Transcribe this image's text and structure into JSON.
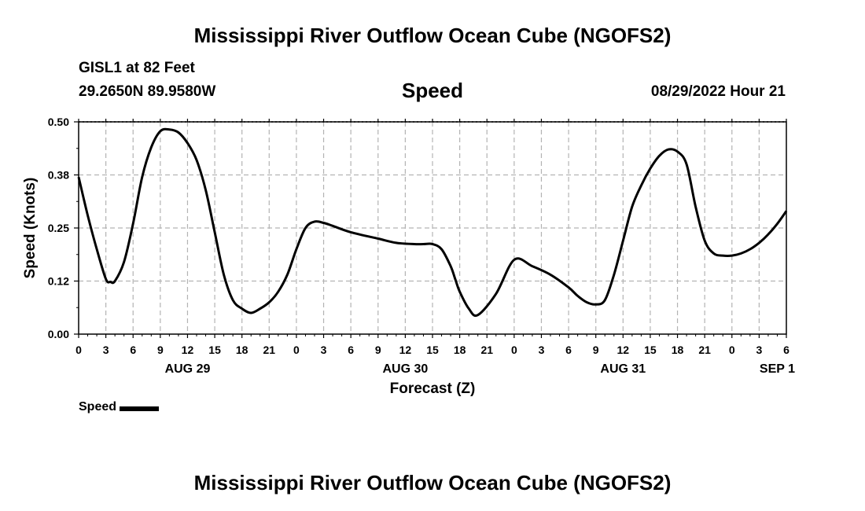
{
  "header": {
    "title": "Mississippi River Outflow Ocean Cube (NGOFS2)",
    "station": "GISL1 at 82 Feet",
    "coordinates": "29.2650N  89.9580W",
    "variable": "Speed",
    "datetime": "08/29/2022 Hour 21"
  },
  "footer": {
    "title": "Mississippi River Outflow Ocean Cube (NGOFS2)"
  },
  "legend": {
    "label": "Speed"
  },
  "chart_data": {
    "type": "line",
    "title": "Speed",
    "xlabel": "Forecast (Z)",
    "ylabel": "Speed (Knots)",
    "ylim": [
      0,
      0.5
    ],
    "xlim": [
      0,
      78
    ],
    "x_unit": "hours from 08/29/2022 00Z",
    "y_ticks": [
      "0.00",
      "0.12",
      "0.25",
      "0.38",
      "0.50"
    ],
    "y_tick_values": [
      0,
      0.125,
      0.25,
      0.375,
      0.5
    ],
    "x_ticks": [
      0,
      3,
      6,
      9,
      12,
      15,
      18,
      21,
      24,
      27,
      30,
      33,
      36,
      39,
      42,
      45,
      48,
      51,
      54,
      57,
      60,
      63,
      66,
      69,
      72,
      75,
      78
    ],
    "x_tick_labels": [
      "0",
      "3",
      "6",
      "9",
      "12",
      "15",
      "18",
      "21",
      "0",
      "3",
      "6",
      "9",
      "12",
      "15",
      "18",
      "21",
      "0",
      "3",
      "6",
      "9",
      "12",
      "15",
      "18",
      "21",
      "0",
      "3",
      "6"
    ],
    "date_labels": [
      {
        "label": "AUG 29",
        "hour": 12
      },
      {
        "label": "AUG 30",
        "hour": 36
      },
      {
        "label": "AUG 31",
        "hour": 60
      },
      {
        "label": "SEP 1",
        "hour": 77
      }
    ],
    "grid": true,
    "series": [
      {
        "name": "Speed",
        "color": "#000000",
        "x": [
          0,
          1,
          2,
          3,
          3.5,
          4,
          5,
          6,
          7,
          8,
          9,
          10,
          11,
          12,
          13,
          14,
          15,
          16,
          17,
          18,
          19,
          20,
          21,
          22,
          23,
          24,
          25,
          26,
          27,
          28,
          30,
          33,
          35,
          37,
          38,
          39,
          40,
          41,
          41.5,
          42,
          43,
          44,
          46,
          48,
          50,
          52,
          54,
          55,
          56,
          57,
          58,
          59,
          60,
          61,
          62,
          63,
          64,
          65,
          66,
          67,
          68,
          69,
          70,
          71,
          72,
          73,
          74,
          75,
          76,
          77,
          78
        ],
        "y": [
          0.37,
          0.28,
          0.2,
          0.13,
          0.123,
          0.125,
          0.17,
          0.26,
          0.37,
          0.44,
          0.478,
          0.482,
          0.475,
          0.45,
          0.41,
          0.34,
          0.24,
          0.14,
          0.08,
          0.06,
          0.05,
          0.06,
          0.075,
          0.1,
          0.14,
          0.2,
          0.25,
          0.265,
          0.262,
          0.255,
          0.24,
          0.225,
          0.215,
          0.212,
          0.212,
          0.212,
          0.2,
          0.16,
          0.13,
          0.1,
          0.06,
          0.045,
          0.095,
          0.175,
          0.16,
          0.14,
          0.11,
          0.09,
          0.075,
          0.07,
          0.08,
          0.14,
          0.22,
          0.3,
          0.35,
          0.39,
          0.42,
          0.435,
          0.43,
          0.4,
          0.3,
          0.22,
          0.19,
          0.185,
          0.185,
          0.19,
          0.2,
          0.215,
          0.235,
          0.26,
          0.29
        ]
      }
    ]
  }
}
